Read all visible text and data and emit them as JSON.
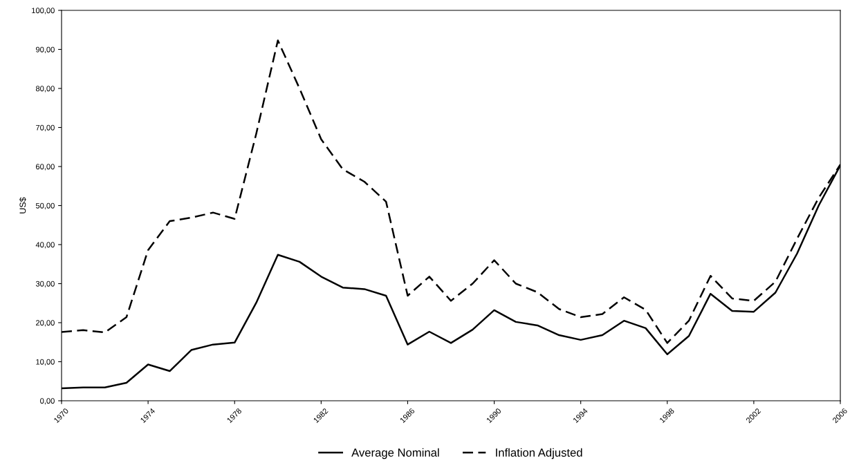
{
  "chart_data": {
    "type": "line",
    "ylabel": "US$",
    "x": [
      1970,
      1971,
      1972,
      1973,
      1974,
      1975,
      1976,
      1977,
      1978,
      1979,
      1980,
      1981,
      1982,
      1983,
      1984,
      1985,
      1986,
      1987,
      1988,
      1989,
      1990,
      1991,
      1992,
      1993,
      1994,
      1995,
      1996,
      1997,
      1998,
      1999,
      2000,
      2001,
      2002,
      2003,
      2004,
      2005,
      2006
    ],
    "series": [
      {
        "name": "Average Nominal",
        "color": "#000000",
        "line_style": "solid",
        "values": [
          3.2,
          3.4,
          3.4,
          4.6,
          9.3,
          7.6,
          13.0,
          14.4,
          14.9,
          25.1,
          37.4,
          35.6,
          31.8,
          29.0,
          28.6,
          26.9,
          14.4,
          17.7,
          14.8,
          18.2,
          23.2,
          20.2,
          19.3,
          16.8,
          15.6,
          16.8,
          20.5,
          18.6,
          11.9,
          16.6,
          27.4,
          23.0,
          22.8,
          27.7,
          37.7,
          50.0,
          60.3
        ]
      },
      {
        "name": "Inflation Adjusted",
        "color": "#000000",
        "line_style": "dashed",
        "values": [
          17.6,
          18.1,
          17.5,
          21.4,
          38.6,
          46.0,
          46.9,
          48.2,
          46.6,
          68.4,
          92.3,
          80.0,
          67.0,
          59.3,
          56.1,
          51.0,
          26.9,
          31.8,
          25.6,
          30.0,
          36.0,
          30.0,
          27.8,
          23.5,
          21.4,
          22.2,
          26.5,
          23.3,
          14.8,
          20.5,
          32.0,
          26.2,
          25.6,
          30.5,
          41.5,
          52.0,
          60.5
        ]
      }
    ],
    "xlim": [
      1970,
      2006
    ],
    "xticks": [
      1970,
      1974,
      1978,
      1982,
      1986,
      1990,
      1994,
      1998,
      2002,
      2006
    ],
    "ylim": [
      0,
      100
    ],
    "yticks": [
      {
        "value": 0,
        "label": "0,00"
      },
      {
        "value": 10,
        "label": "10,00"
      },
      {
        "value": 20,
        "label": "20,00"
      },
      {
        "value": 30,
        "label": "30,00"
      },
      {
        "value": 40,
        "label": "40,00"
      },
      {
        "value": 50,
        "label": "50,00"
      },
      {
        "value": 60,
        "label": "60,00"
      },
      {
        "value": 70,
        "label": "70,00"
      },
      {
        "value": 80,
        "label": "80,00"
      },
      {
        "value": 90,
        "label": "90,00"
      },
      {
        "value": 100,
        "label": "100,00"
      }
    ],
    "grid": false,
    "legend": "bottom",
    "marker": "none"
  }
}
